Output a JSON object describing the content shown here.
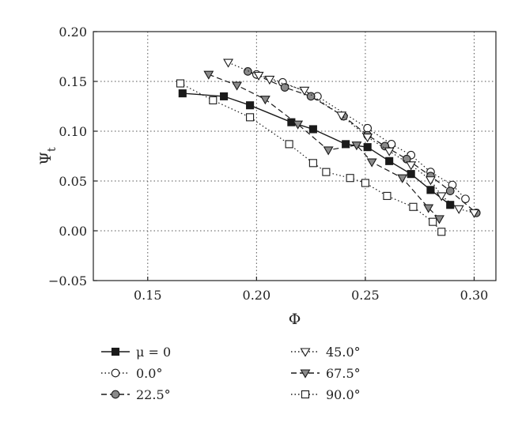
{
  "chart_data": {
    "type": "line",
    "xlabel": "Φ",
    "ylabel": "Ψ",
    "ylabel_sub": "t",
    "xlim": [
      0.125,
      0.31
    ],
    "ylim": [
      -0.05,
      0.2
    ],
    "xticks": [
      0.15,
      0.2,
      0.25,
      0.3
    ],
    "yticks": [
      -0.05,
      0.0,
      0.05,
      0.1,
      0.15,
      0.2
    ],
    "xtick_labels": [
      "0.15",
      "0.20",
      "0.25",
      "0.30"
    ],
    "ytick_labels": [
      "−0.05",
      "0.00",
      "0.05",
      "0.10",
      "0.15",
      "0.20"
    ],
    "grid": true,
    "legend_position": "bottom",
    "series": [
      {
        "name": "μ = 0",
        "line": "solid",
        "marker": "square",
        "fill": "black",
        "x": [
          0.166,
          0.185,
          0.197,
          0.216,
          0.226,
          0.241,
          0.251,
          0.261,
          0.271,
          0.28,
          0.289
        ],
        "y": [
          0.138,
          0.135,
          0.126,
          0.109,
          0.102,
          0.087,
          0.084,
          0.07,
          0.057,
          0.041,
          0.026
        ]
      },
      {
        "name": "0.0°",
        "line": "dotted",
        "marker": "circle",
        "fill": "white",
        "x": [
          0.2,
          0.212,
          0.228,
          0.251,
          0.262,
          0.271,
          0.28,
          0.29,
          0.296
        ],
        "y": [
          0.157,
          0.149,
          0.135,
          0.103,
          0.087,
          0.076,
          0.059,
          0.046,
          0.032
        ]
      },
      {
        "name": "22.5°",
        "line": "dashed",
        "marker": "circle",
        "fill": "gray",
        "x": [
          0.196,
          0.213,
          0.225,
          0.24,
          0.251,
          0.259,
          0.269,
          0.28,
          0.289,
          0.301
        ],
        "y": [
          0.16,
          0.144,
          0.135,
          0.115,
          0.096,
          0.085,
          0.072,
          0.055,
          0.04,
          0.018
        ]
      },
      {
        "name": "45.0°",
        "line": "dotted",
        "marker": "triangle-down",
        "fill": "white",
        "x": [
          0.187,
          0.201,
          0.206,
          0.222,
          0.239,
          0.251,
          0.261,
          0.271,
          0.28,
          0.285,
          0.293,
          0.3
        ],
        "y": [
          0.169,
          0.156,
          0.152,
          0.141,
          0.116,
          0.094,
          0.08,
          0.066,
          0.051,
          0.035,
          0.022,
          0.018
        ]
      },
      {
        "name": "67.5°",
        "line": "dashed",
        "marker": "triangle-down",
        "fill": "gray",
        "x": [
          0.178,
          0.191,
          0.204,
          0.219,
          0.233,
          0.246,
          0.253,
          0.267,
          0.279,
          0.284
        ],
        "y": [
          0.157,
          0.146,
          0.132,
          0.107,
          0.081,
          0.086,
          0.069,
          0.053,
          0.023,
          0.012
        ]
      },
      {
        "name": "90.0°",
        "line": "dotted",
        "marker": "square",
        "fill": "white",
        "x": [
          0.165,
          0.18,
          0.197,
          0.215,
          0.226,
          0.232,
          0.243,
          0.25,
          0.26,
          0.272,
          0.281,
          0.285
        ],
        "y": [
          0.148,
          0.131,
          0.114,
          0.087,
          0.068,
          0.059,
          0.053,
          0.048,
          0.035,
          0.024,
          0.009,
          -0.001
        ]
      }
    ]
  }
}
